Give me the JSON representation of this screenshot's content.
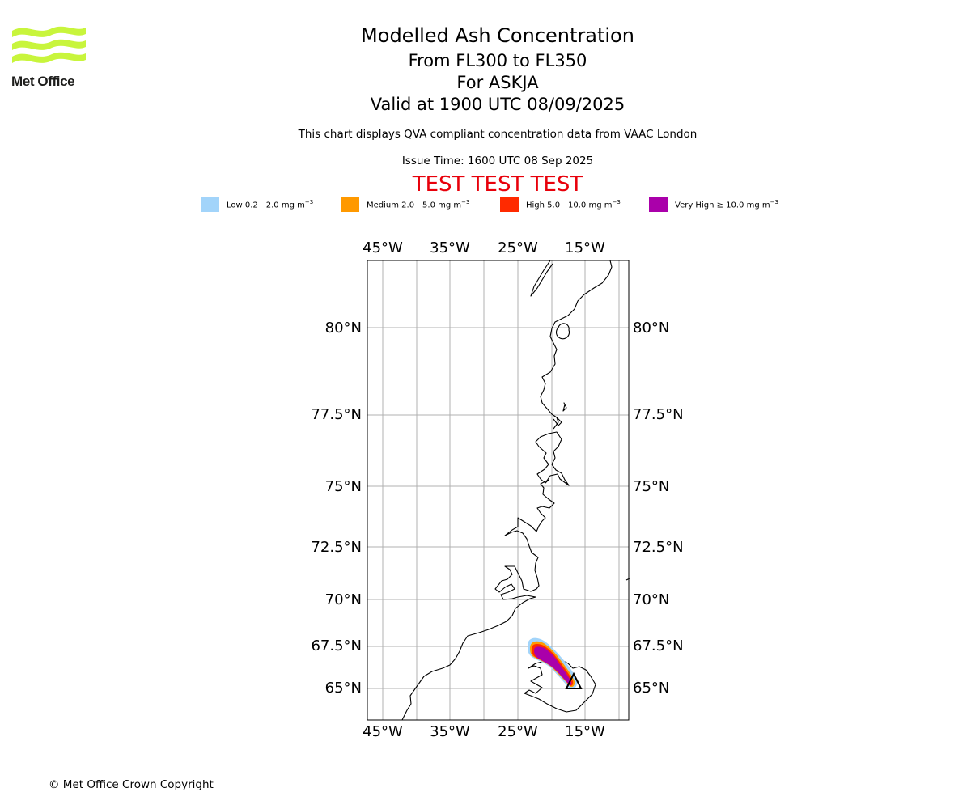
{
  "logo": {
    "text": "Met Office",
    "colors": {
      "waves": "#c8f53c",
      "text": "#1d1d1b"
    }
  },
  "header": {
    "title": "Modelled Ash Concentration",
    "levels": "From FL300 to FL350",
    "volcano": "For ASKJA",
    "valid": "Valid at 1900 UTC 08/09/2025",
    "subtitle": "This chart displays QVA compliant concentration data from VAAC London",
    "issue": "Issue Time: 1600 UTC 08 Sep 2025",
    "test_banner": "TEST TEST TEST"
  },
  "legend": [
    {
      "label": "Low 0.2 - 2.0 mg m",
      "color": "#a2d4fa"
    },
    {
      "label": "Medium 2.0 - 5.0 mg m",
      "color": "#ff9900"
    },
    {
      "label": "High 5.0 - 10.0 mg m",
      "color": "#ff2a00"
    },
    {
      "label": "Very High ≥ 10.0 mg m",
      "color": "#aa00aa"
    }
  ],
  "legend_unit_exponent": "−3",
  "map": {
    "projection": "lon/lat",
    "grid": true,
    "longitude_labels": [
      "45°W",
      "35°W",
      "25°W",
      "15°W"
    ],
    "latitude_labels": [
      "80°N",
      "77.5°N",
      "75°N",
      "72.5°N",
      "70°N",
      "67.5°N",
      "65°N"
    ],
    "volcano_marker": "triangle",
    "colors": {
      "grid": "#b0b0b0",
      "coast": "#000000",
      "frame": "#000000"
    }
  },
  "footer": {
    "copyright": "© Met Office Crown Copyright"
  }
}
